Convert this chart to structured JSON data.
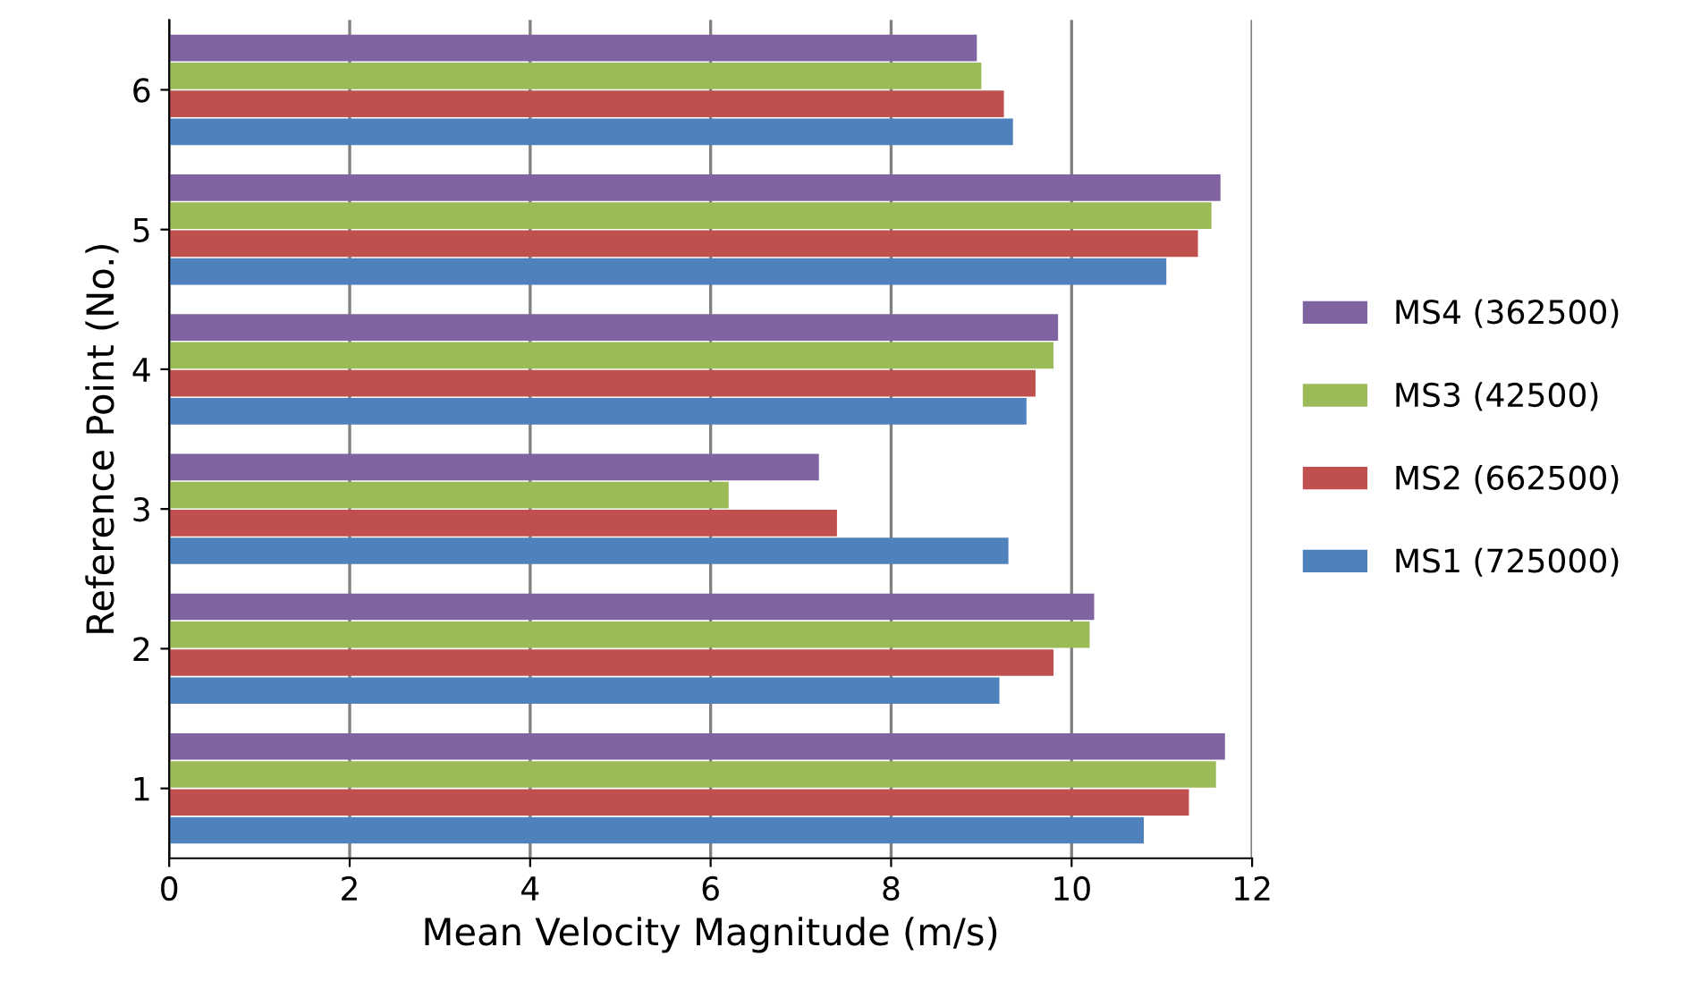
{
  "chart_data": {
    "type": "bar",
    "orientation": "horizontal",
    "xlabel": "Mean Velocity Magnitude (m/s)",
    "ylabel": "Reference Point (No.)",
    "categories": [
      "6",
      "5",
      "4",
      "3",
      "2",
      "1"
    ],
    "series": [
      {
        "name": "MS1 (725000)",
        "color": "#4f81bd",
        "values": [
          9.35,
          11.05,
          9.5,
          9.3,
          9.2,
          10.8
        ]
      },
      {
        "name": "MS2 (662500)",
        "color": "#c0504d",
        "values": [
          9.25,
          11.4,
          9.6,
          7.4,
          9.8,
          11.3
        ]
      },
      {
        "name": "MS3 (42500)",
        "color": "#9bbb59",
        "values": [
          9.0,
          11.55,
          9.8,
          6.2,
          10.2,
          11.6
        ]
      },
      {
        "name": "MS4 (362500)",
        "color": "#8064a2",
        "values": [
          8.95,
          11.65,
          9.85,
          7.2,
          10.25,
          11.7
        ]
      }
    ],
    "xlim": [
      0,
      12
    ],
    "xticks": [
      0,
      2,
      4,
      6,
      8,
      10,
      12
    ],
    "grid": "x",
    "legend": "right"
  }
}
